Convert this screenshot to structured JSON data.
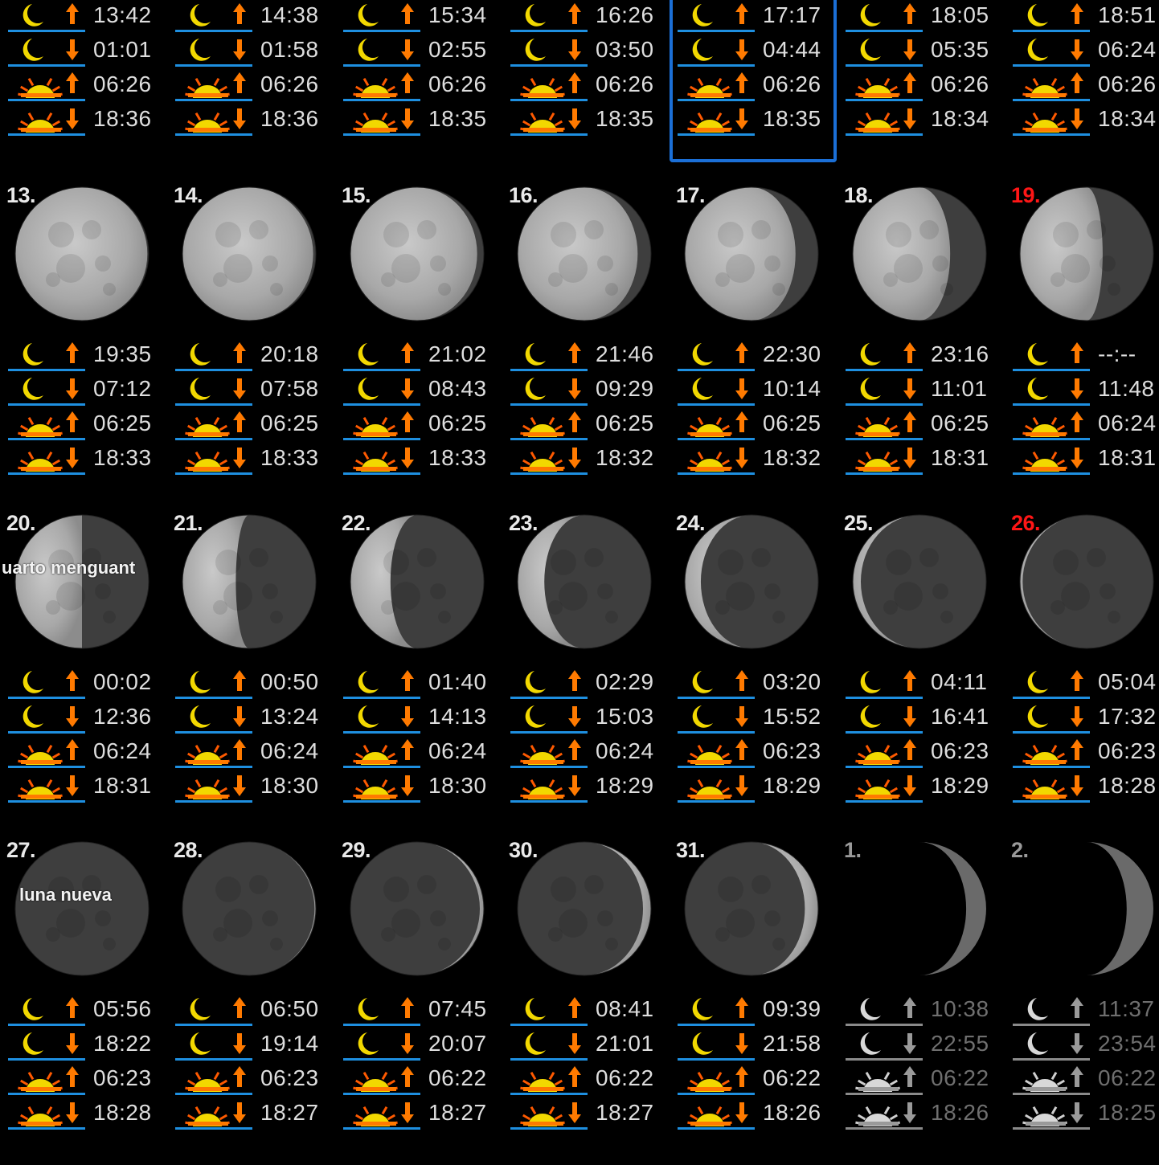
{
  "calendar": {
    "today_column": 4,
    "rows": [
      {
        "days": [
          {
            "times": [
              "13:42",
              "01:01",
              "06:26",
              "18:36"
            ]
          },
          {
            "times": [
              "14:38",
              "01:58",
              "06:26",
              "18:36"
            ]
          },
          {
            "times": [
              "15:34",
              "02:55",
              "06:26",
              "18:35"
            ]
          },
          {
            "times": [
              "16:26",
              "03:50",
              "06:26",
              "18:35"
            ]
          },
          {
            "times": [
              "17:17",
              "04:44",
              "06:26",
              "18:35"
            ],
            "today": true
          },
          {
            "times": [
              "18:05",
              "05:35",
              "06:26",
              "18:34"
            ]
          },
          {
            "times": [
              "18:51",
              "06:24",
              "06:26",
              "18:34"
            ]
          }
        ]
      },
      {
        "days": [
          {
            "num": "13.",
            "illum": 0.99,
            "waxing": false,
            "times": [
              "19:35",
              "07:12",
              "06:25",
              "18:33"
            ]
          },
          {
            "num": "14.",
            "illum": 0.98,
            "waxing": false,
            "times": [
              "20:18",
              "07:58",
              "06:25",
              "18:33"
            ]
          },
          {
            "num": "15.",
            "illum": 0.95,
            "waxing": false,
            "times": [
              "21:02",
              "08:43",
              "06:25",
              "18:33"
            ]
          },
          {
            "num": "16.",
            "illum": 0.9,
            "waxing": false,
            "times": [
              "21:46",
              "09:29",
              "06:25",
              "18:32"
            ]
          },
          {
            "num": "17.",
            "illum": 0.83,
            "waxing": false,
            "times": [
              "22:30",
              "10:14",
              "06:25",
              "18:32"
            ]
          },
          {
            "num": "18.",
            "illum": 0.73,
            "waxing": false,
            "times": [
              "23:16",
              "11:01",
              "06:25",
              "18:31"
            ]
          },
          {
            "num": "19.",
            "illum": 0.62,
            "waxing": false,
            "sunday": true,
            "times": [
              "--:--",
              "11:48",
              "06:24",
              "18:31"
            ]
          }
        ]
      },
      {
        "days": [
          {
            "num": "20.",
            "illum": 0.5,
            "waxing": false,
            "label": "uarto menguant",
            "times": [
              "00:02",
              "12:36",
              "06:24",
              "18:31"
            ]
          },
          {
            "num": "21.",
            "illum": 0.4,
            "waxing": false,
            "times": [
              "00:50",
              "13:24",
              "06:24",
              "18:30"
            ]
          },
          {
            "num": "22.",
            "illum": 0.3,
            "waxing": false,
            "times": [
              "01:40",
              "14:13",
              "06:24",
              "18:30"
            ]
          },
          {
            "num": "23.",
            "illum": 0.2,
            "waxing": false,
            "times": [
              "02:29",
              "15:03",
              "06:24",
              "18:29"
            ]
          },
          {
            "num": "24.",
            "illum": 0.12,
            "waxing": false,
            "times": [
              "03:20",
              "15:52",
              "06:23",
              "18:29"
            ]
          },
          {
            "num": "25.",
            "illum": 0.06,
            "waxing": false,
            "times": [
              "04:11",
              "16:41",
              "06:23",
              "18:29"
            ]
          },
          {
            "num": "26.",
            "illum": 0.02,
            "waxing": false,
            "sunday": true,
            "times": [
              "05:04",
              "17:32",
              "06:23",
              "18:28"
            ]
          }
        ]
      },
      {
        "days": [
          {
            "num": "27.",
            "illum": 0.0,
            "waxing": true,
            "label": "luna nueva",
            "times": [
              "05:56",
              "18:22",
              "06:23",
              "18:28"
            ]
          },
          {
            "num": "28.",
            "illum": 0.01,
            "waxing": true,
            "times": [
              "06:50",
              "19:14",
              "06:23",
              "18:27"
            ]
          },
          {
            "num": "29.",
            "illum": 0.03,
            "waxing": true,
            "times": [
              "07:45",
              "20:07",
              "06:22",
              "18:27"
            ]
          },
          {
            "num": "30.",
            "illum": 0.06,
            "waxing": true,
            "times": [
              "08:41",
              "21:01",
              "06:22",
              "18:27"
            ]
          },
          {
            "num": "31.",
            "illum": 0.1,
            "waxing": true,
            "times": [
              "09:39",
              "21:58",
              "06:22",
              "18:26"
            ]
          },
          {
            "num": "1.",
            "illum": 0.15,
            "waxing": true,
            "next_month": true,
            "times": [
              "10:38",
              "22:55",
              "06:22",
              "18:26"
            ]
          },
          {
            "num": "2.",
            "illum": 0.2,
            "waxing": true,
            "next_month": true,
            "times": [
              "11:37",
              "23:54",
              "06:22",
              "18:25"
            ]
          }
        ]
      }
    ]
  },
  "icons": [
    "moonrise-icon",
    "moonset-icon",
    "sunrise-icon",
    "sunset-icon"
  ],
  "colors": {
    "background": "#000000",
    "sunday": "#ff1616",
    "today_frame": "#1b6fd6",
    "horizon": "#1e8fe0",
    "arrow": "#ff7a00",
    "moon_icon": "#f2d800"
  }
}
